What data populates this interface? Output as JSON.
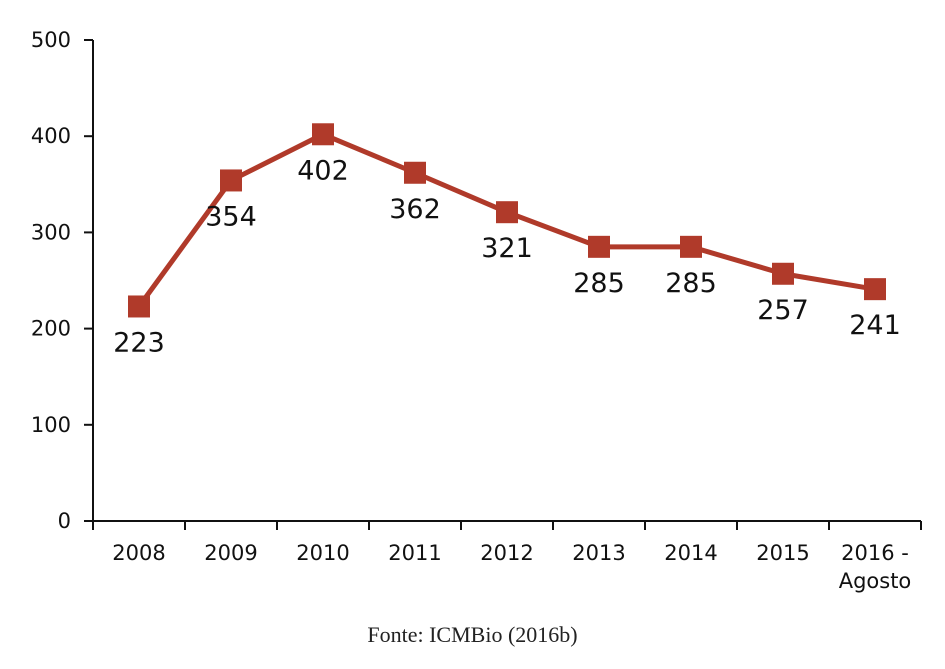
{
  "chart_data": {
    "type": "line",
    "categories": [
      "2008",
      "2009",
      "2010",
      "2011",
      "2012",
      "2013",
      "2014",
      "2015",
      "2016 - Agosto"
    ],
    "series": [
      {
        "values": [
          223,
          354,
          402,
          362,
          321,
          285,
          285,
          257,
          241
        ]
      }
    ],
    "data_labels": [
      "223",
      "354",
      "402",
      "362",
      "321",
      "285",
      "285",
      "257",
      "241"
    ],
    "ylim": [
      0,
      500
    ],
    "yticks": [
      0,
      100,
      200,
      300,
      400,
      500
    ],
    "grid": false,
    "legend": "none",
    "line_color": "#b03a2a",
    "marker": "square"
  },
  "source": "Fonte: ICMBio (2016b)"
}
